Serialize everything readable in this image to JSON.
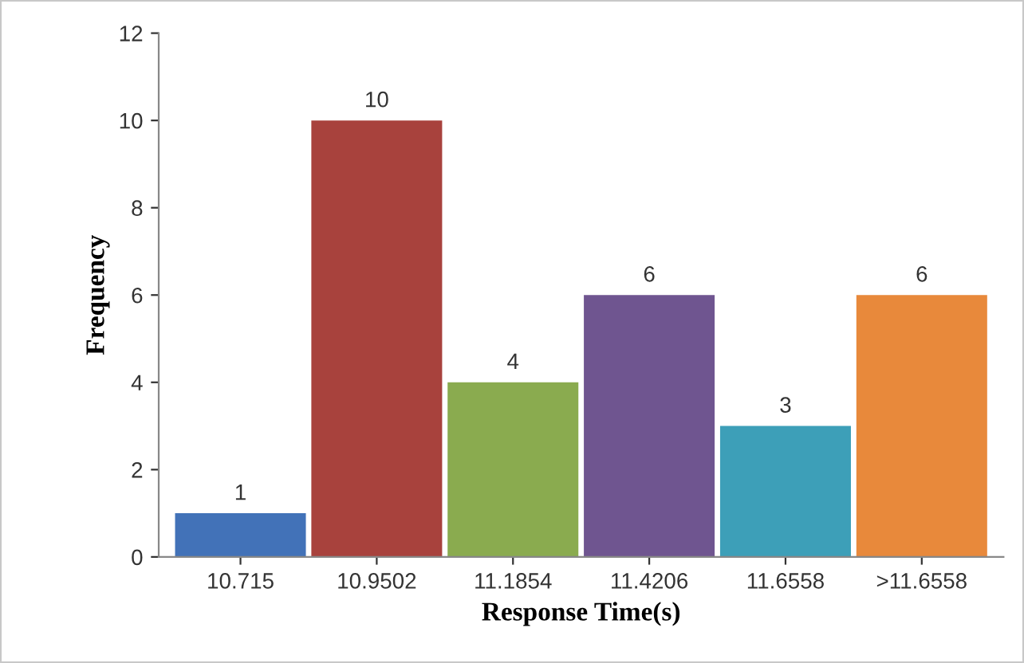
{
  "chart_data": {
    "type": "bar",
    "xlabel": "Response Time(s)",
    "ylabel": "Frequency",
    "categories": [
      "10.715",
      "10.9502",
      "11.1854",
      "11.4206",
      "11.6558",
      ">11.6558"
    ],
    "values": [
      1,
      10,
      4,
      6,
      3,
      6
    ],
    "colors": [
      "#4272b8",
      "#a8423d",
      "#8aab4f",
      "#6f5590",
      "#3d9fb8",
      "#e8893b"
    ],
    "ylim": [
      0,
      12
    ],
    "yticks": [
      0,
      2,
      4,
      6,
      8,
      10,
      12
    ],
    "grid": false,
    "data_labels": true
  }
}
